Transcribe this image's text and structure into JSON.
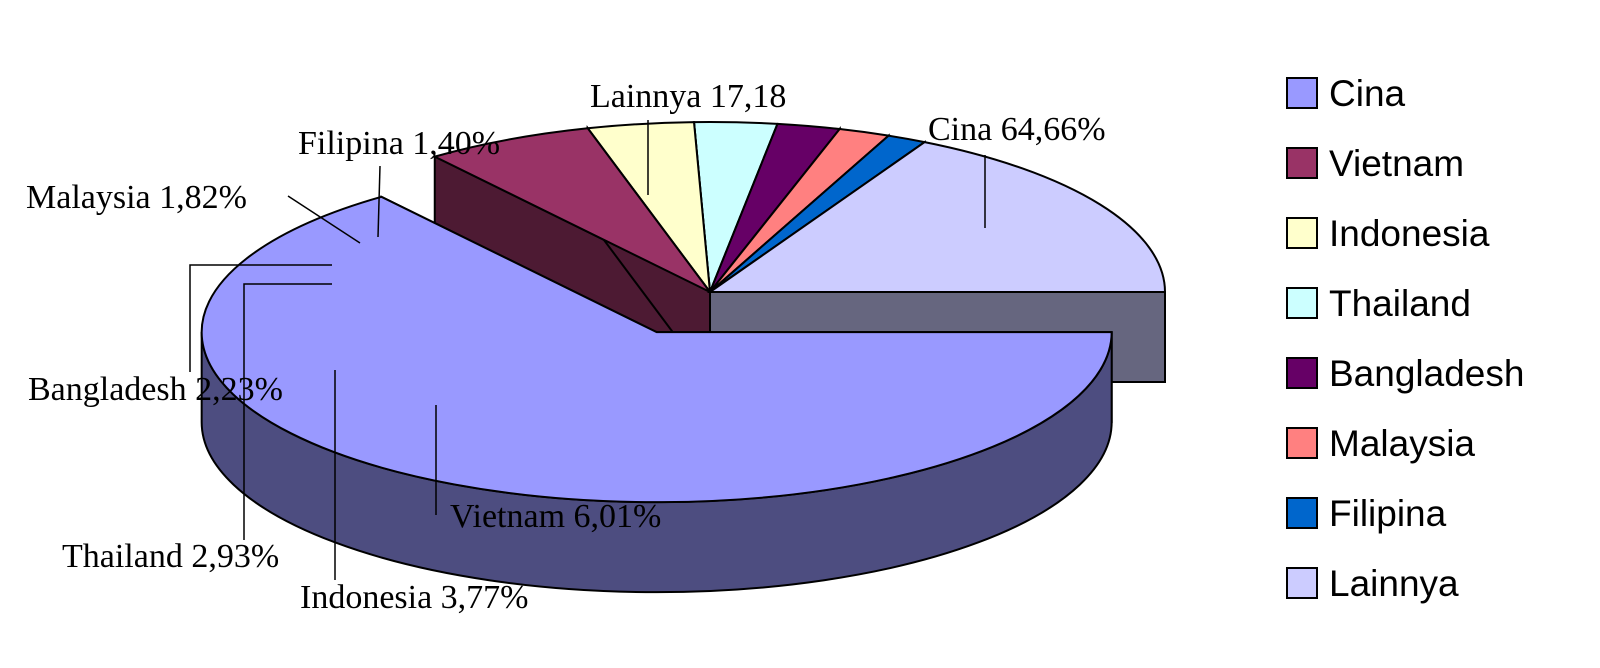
{
  "chart_data": {
    "type": "pie",
    "style": "3d-exploded",
    "title": "",
    "legend_position": "right",
    "slices": [
      {
        "name": "Cina",
        "value": 64.66,
        "label": "Cina 64,66%",
        "top_color": "#9999ff",
        "side_color": "#4d4d80"
      },
      {
        "name": "Vietnam",
        "value": 6.01,
        "label": "Vietnam 6,01%",
        "top_color": "#993366",
        "side_color": "#4d1a33"
      },
      {
        "name": "Indonesia",
        "value": 3.77,
        "label": "Indonesia 3,77%",
        "top_color": "#ffffcc",
        "side_color": "#80806a"
      },
      {
        "name": "Thailand",
        "value": 2.93,
        "label": "Thailand 2,93%",
        "top_color": "#ccffff",
        "side_color": "#6a8080"
      },
      {
        "name": "Bangladesh",
        "value": 2.23,
        "label": "Bangladesh 2,23%",
        "top_color": "#660066",
        "side_color": "#330033"
      },
      {
        "name": "Malaysia",
        "value": 1.82,
        "label": "Malaysia 1,82%",
        "top_color": "#ff8080",
        "side_color": "#804040"
      },
      {
        "name": "Filipina",
        "value": 1.4,
        "label": "Filipina 1,40%",
        "top_color": "#0066cc",
        "side_color": "#003366"
      },
      {
        "name": "Lainnya",
        "value": 17.18,
        "label": "Lainnya 17,18",
        "top_color": "#ccccff",
        "side_color": "#66667f"
      }
    ]
  }
}
